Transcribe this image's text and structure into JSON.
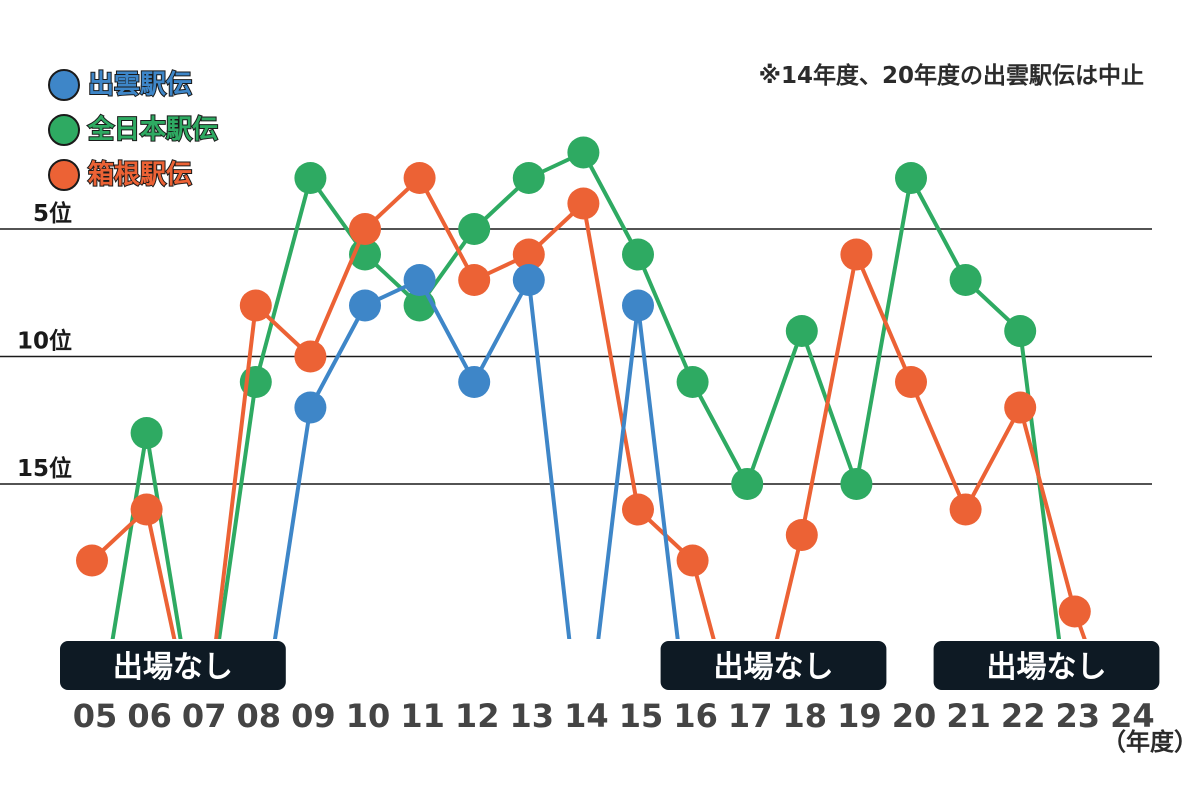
{
  "chart_data": {
    "type": "line",
    "note": "※14年度、20年度の出雲駅伝は中止",
    "x": [
      "05",
      "06",
      "07",
      "08",
      "09",
      "10",
      "11",
      "12",
      "13",
      "14",
      "15",
      "16",
      "17",
      "18",
      "19",
      "20",
      "21",
      "22",
      "23",
      "24"
    ],
    "x_unit": "（年度）",
    "y_ticks": [
      {
        "value": 5,
        "label": "5位"
      },
      {
        "value": 10,
        "label": "10位"
      },
      {
        "value": 15,
        "label": "15位"
      }
    ],
    "y_range": [
      1,
      21
    ],
    "y_inverted": true,
    "grid": "horizontal at 5, 10, 15",
    "legend_position": "top-left",
    "series": [
      {
        "name": "出雲駅伝",
        "color": "#3e86c8",
        "values": [
          null,
          null,
          null,
          null,
          12,
          8,
          7,
          11,
          7,
          null,
          8,
          null,
          null,
          null,
          null,
          null,
          null,
          null,
          null,
          null
        ]
      },
      {
        "name": "全日本駅伝",
        "color": "#2eaa62",
        "values": [
          null,
          13,
          null,
          11,
          3,
          6,
          8,
          5,
          3,
          2,
          6,
          11,
          15,
          9,
          15,
          3,
          7,
          9,
          null,
          null
        ]
      },
      {
        "name": "箱根駅伝",
        "color": "#ec6235",
        "values": [
          18,
          16,
          null,
          8,
          10,
          5,
          3,
          7,
          6,
          4,
          16,
          18,
          null,
          17,
          6,
          11,
          16,
          12,
          20,
          null
        ]
      }
    ],
    "no_entry_label": "出場なし"
  }
}
